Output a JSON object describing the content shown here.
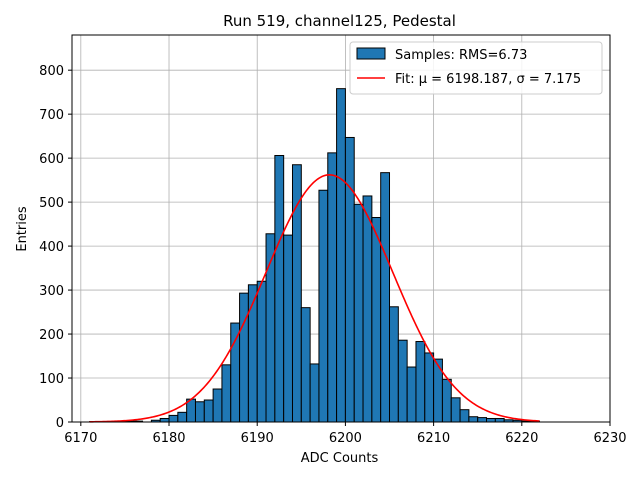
{
  "chart_data": {
    "type": "bar",
    "title": "Run 519, channel125, Pedestal",
    "xlabel": "ADC Counts",
    "ylabel": "Entries",
    "xlim": [
      6169,
      6230
    ],
    "ylim": [
      0,
      880
    ],
    "xticks": [
      6170,
      6180,
      6190,
      6200,
      6210,
      6220,
      6230
    ],
    "yticks": [
      0,
      100,
      200,
      300,
      400,
      500,
      600,
      700,
      800
    ],
    "grid": true,
    "legend_placement": "top-right",
    "histogram": {
      "name": "Samples: RMS=6.73",
      "color": "#1f77b4",
      "bin_starts": [
        6171,
        6172,
        6173,
        6174,
        6175,
        6176,
        6177,
        6178,
        6179,
        6180,
        6181,
        6182,
        6183,
        6184,
        6185,
        6186,
        6187,
        6188,
        6189,
        6190,
        6191,
        6192,
        6193,
        6194,
        6195,
        6196,
        6197,
        6198,
        6199,
        6200,
        6201,
        6202,
        6203,
        6204,
        6205,
        6206,
        6207,
        6208,
        6209,
        6210,
        6211,
        6212,
        6213,
        6214,
        6215,
        6216,
        6217,
        6218,
        6219,
        6220,
        6221
      ],
      "counts": [
        1,
        0,
        1,
        1,
        2,
        2,
        0,
        4,
        8,
        15,
        22,
        52,
        46,
        50,
        75,
        130,
        225,
        293,
        312,
        320,
        428,
        606,
        425,
        585,
        260,
        132,
        527,
        612,
        758,
        647,
        495,
        514,
        465,
        567,
        262,
        186,
        125,
        183,
        157,
        143,
        97,
        55,
        28,
        12,
        10,
        8,
        8,
        5,
        4,
        2,
        2
      ]
    },
    "fit": {
      "name": "Fit: μ = 6198.187, σ = 7.175",
      "color": "#ff0000",
      "mu": 6198.187,
      "sigma": 7.175,
      "amplitude": 562,
      "x_range": [
        6171,
        6222
      ]
    }
  }
}
